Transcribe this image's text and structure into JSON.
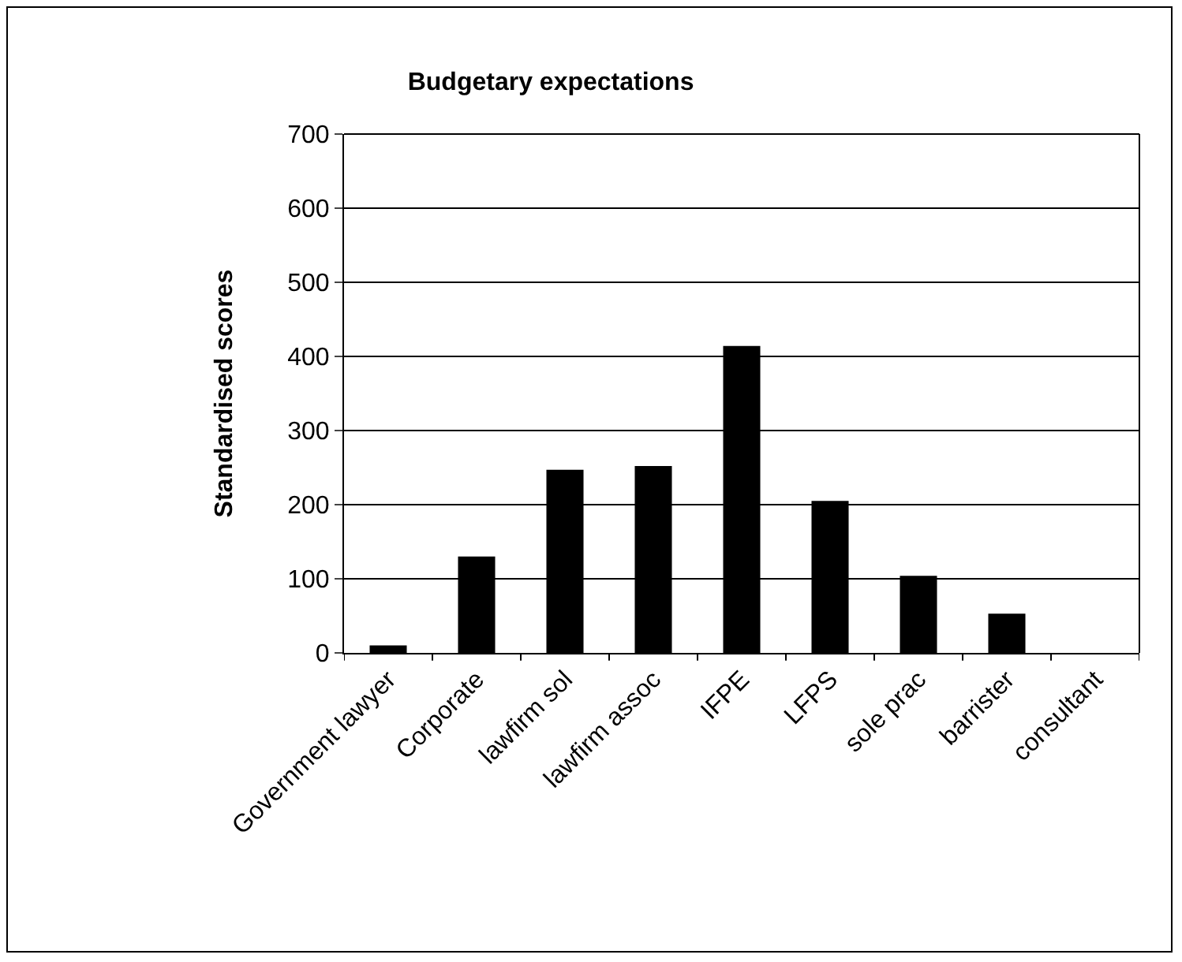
{
  "chart_data": {
    "type": "bar",
    "title": "Budgetary expectations",
    "ylabel": "Standardised scores",
    "categories": [
      "Government lawyer",
      "Corporate",
      "lawfirm sol",
      "lawfirm assoc",
      "IFPE",
      "LFPS",
      "sole prac",
      "barrister",
      "consultant"
    ],
    "values": [
      10,
      130,
      247,
      252,
      414,
      205,
      104,
      53,
      0
    ],
    "color": "#000000",
    "ylim": [
      0,
      700
    ],
    "yticks": [
      0,
      100,
      200,
      300,
      400,
      500,
      600,
      700
    ],
    "grid": "y"
  }
}
